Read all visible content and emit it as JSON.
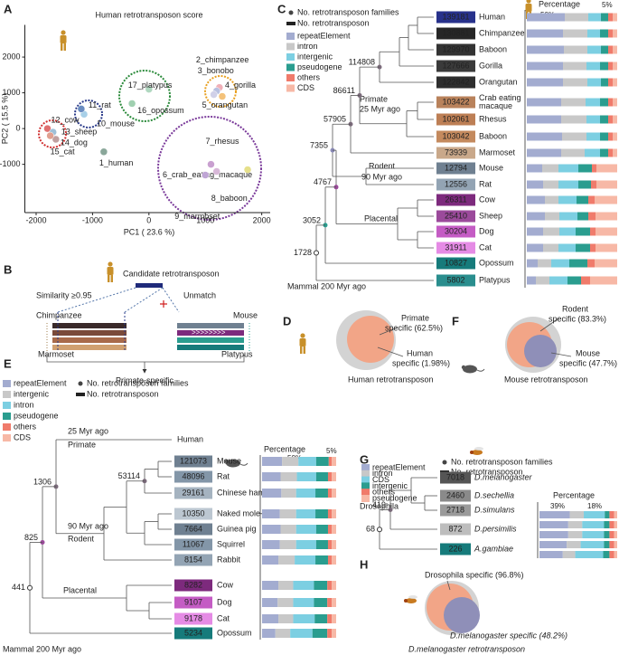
{
  "panel_a": {
    "label": "A",
    "title": "Human retrotransposon score",
    "x_label": "PC1 ( 23.6 %)",
    "y_label": "PC2 ( 15.5 %)",
    "xlim": [
      -2200,
      2150
    ],
    "ylim": [
      -2350,
      2900
    ],
    "xticks": [
      -2000,
      -1000,
      0,
      1000,
      2000
    ],
    "yticks": [
      -1000,
      0,
      1000,
      2000
    ],
    "points": [
      {
        "name": "1_human",
        "x": -800,
        "y": -650,
        "color": "#8aa79a"
      },
      {
        "name": "2_chimpanzee",
        "x": 1250,
        "y": 1150,
        "color": "#f0b0b8"
      },
      {
        "name": "3_bonobo",
        "x": 1200,
        "y": 1050,
        "color": "#b8c0e0"
      },
      {
        "name": "4_gorilla",
        "x": 1300,
        "y": 900,
        "color": "#f4c27a"
      },
      {
        "name": "5_orangutan",
        "x": 1150,
        "y": 950,
        "color": "#d0d0e8"
      },
      {
        "name": "6_crab_eating_macaque",
        "x": 1750,
        "y": -1150,
        "color": "#e6e08a"
      },
      {
        "name": "7_rhesus",
        "x": 1100,
        "y": -1000,
        "color": "#c9a0d0"
      },
      {
        "name": "8_baboon",
        "x": 1200,
        "y": -1200,
        "color": "#d8b8d8"
      },
      {
        "name": "9_marmoset",
        "x": 1000,
        "y": -1300,
        "color": "#bfa5d5"
      },
      {
        "name": "10_mouse",
        "x": -1150,
        "y": 400,
        "color": "#a8d0e8"
      },
      {
        "name": "11_rat",
        "x": -1200,
        "y": 550,
        "color": "#6a8cc0"
      },
      {
        "name": "12_cow",
        "x": -1800,
        "y": 0,
        "color": "#e07070"
      },
      {
        "name": "13_sheep",
        "x": -1700,
        "y": -100,
        "color": "#9fc0d8"
      },
      {
        "name": "14_dog",
        "x": -1650,
        "y": -300,
        "color": "#c0a0a0"
      },
      {
        "name": "15_cat",
        "x": -1750,
        "y": -200,
        "color": "#e0a090"
      },
      {
        "name": "16_opossum",
        "x": -300,
        "y": 700,
        "color": "#a0d0b0"
      },
      {
        "name": "17_platypus",
        "x": 0,
        "y": 1100,
        "color": "#b0d8c0"
      }
    ]
  },
  "panel_b": {
    "label": "B",
    "candidate": "Candidate retrotransposon",
    "similarity": "Similarity ≥0.95",
    "unmatch": "Unmatch",
    "species": [
      "Chimpanzee",
      "Marmoset",
      "Mouse",
      "Platypus"
    ],
    "result": "Primate-specific"
  },
  "panel_c": {
    "label": "C",
    "legend_families": "No. retrotransposon families",
    "legend_count": "No. retrotransposon",
    "percentage_title": "Percentage",
    "scale_labels": [
      "50%",
      "5%"
    ],
    "classes": [
      {
        "name": "repeatElement",
        "color": "#a3acd0"
      },
      {
        "name": "intron",
        "color": "#c8c8c8"
      },
      {
        "name": "intergenic",
        "color": "#7ccfe2"
      },
      {
        "name": "pseudogene",
        "color": "#2a9d8f"
      },
      {
        "name": "others",
        "color": "#f07b6b"
      },
      {
        "name": "CDS",
        "color": "#f7b8a6"
      }
    ],
    "node_counts": [
      114808,
      86611,
      57905,
      7355,
      4767,
      3052,
      1728
    ],
    "clade_labels": [
      "Primate",
      "25 Myr ago",
      "Rodent",
      "90 Myr ago",
      "Placental",
      "Mammal 200 Myr ago"
    ],
    "rows": [
      {
        "name": "Human",
        "count": 139181,
        "color": "#27318b",
        "segments": [
          42,
          26,
          14,
          8,
          5,
          5
        ]
      },
      {
        "name": "Chimpanzee",
        "count": 130881,
        "color": "#262626",
        "segments": [
          40,
          27,
          14,
          9,
          5,
          5
        ]
      },
      {
        "name": "Baboon",
        "count": 129970,
        "color": "#333333",
        "segments": [
          41,
          26,
          15,
          8,
          5,
          5
        ]
      },
      {
        "name": "Gorilla",
        "count": 127666,
        "color": "#3a3a3a",
        "segments": [
          40,
          26,
          15,
          9,
          5,
          5
        ]
      },
      {
        "name": "Orangutan",
        "count": 122842,
        "color": "#2e2e2e",
        "segments": [
          40,
          27,
          15,
          8,
          5,
          5
        ]
      },
      {
        "name": [
          "Crab eating",
          "macaque"
        ],
        "count": 103422,
        "color": "#b9825b",
        "segments": [
          38,
          27,
          16,
          9,
          5,
          5
        ]
      },
      {
        "name": "Rhesus",
        "count": 102061,
        "color": "#bd7f55",
        "segments": [
          38,
          28,
          15,
          9,
          5,
          5
        ]
      },
      {
        "name": "Baboon",
        "count": 103042,
        "color": "#c48a5e",
        "segments": [
          39,
          27,
          15,
          9,
          5,
          5
        ]
      },
      {
        "name": "Marmoset",
        "count": 73939,
        "color": "#c9a88a",
        "segments": [
          38,
          26,
          17,
          9,
          5,
          5
        ]
      },
      {
        "name": "Mouse",
        "count": 12794,
        "color": "#6f8091",
        "segments": [
          17,
          18,
          22,
          15,
          5,
          23
        ]
      },
      {
        "name": "Rat",
        "count": 12556,
        "color": "#93a4b4",
        "segments": [
          18,
          17,
          22,
          14,
          6,
          23
        ]
      },
      {
        "name": "Cow",
        "count": 26311,
        "color": "#7d2a7d",
        "segments": [
          20,
          15,
          20,
          13,
          7,
          25
        ]
      },
      {
        "name": "Sheep",
        "count": 25410,
        "color": "#9b4a9b",
        "segments": [
          20,
          16,
          20,
          12,
          8,
          24
        ]
      },
      {
        "name": "Dog",
        "count": 30204,
        "color": "#c45cc4",
        "segments": [
          18,
          18,
          18,
          16,
          6,
          24
        ]
      },
      {
        "name": "Cat",
        "count": 31911,
        "color": "#e58be5",
        "segments": [
          18,
          17,
          19,
          16,
          6,
          24
        ]
      },
      {
        "name": "Opossum",
        "count": 10827,
        "color": "#167b7b",
        "segments": [
          12,
          15,
          20,
          20,
          8,
          25
        ]
      },
      {
        "name": "Platypus",
        "count": 5802,
        "color": "#2a8e8e",
        "segments": [
          10,
          15,
          20,
          15,
          10,
          30
        ]
      }
    ]
  },
  "panel_d": {
    "label": "D",
    "labels": [
      [
        "Primate",
        "specific (62.5%)"
      ],
      [
        "Human",
        "specific (1.98%)"
      ]
    ],
    "caption": "Human retrotransposon"
  },
  "panel_e": {
    "label": "E",
    "legend_families": "No. retrotransposon families",
    "legend_count": "No. retrotransposon",
    "percentage_title": "Percentage",
    "scale_labels": [
      "50%",
      "5%"
    ],
    "classes": [
      {
        "name": "repeatElement",
        "color": "#a3acd0"
      },
      {
        "name": "intergenic",
        "color": "#c8c8c8"
      },
      {
        "name": "intron",
        "color": "#7ccfe2"
      },
      {
        "name": "pseudogene",
        "color": "#2a9d8f"
      },
      {
        "name": "others",
        "color": "#f07b6b"
      },
      {
        "name": "CDS",
        "color": "#f7b8a6"
      }
    ],
    "node_counts": [
      53114,
      1306,
      825,
      441
    ],
    "clade_labels": [
      "25 Myr ago",
      "Primate",
      "90 Myr ago",
      "Rodent",
      "Placental",
      "Mammal 200 Myr ago"
    ],
    "rows": [
      {
        "name": "Human"
      },
      {
        "name": "Mouse",
        "count": 121073,
        "color": "#6f8091",
        "segments": [
          27,
          22,
          24,
          17,
          4,
          6
        ]
      },
      {
        "name": "Rat",
        "count": 48096,
        "color": "#8396a8",
        "segments": [
          25,
          22,
          26,
          16,
          5,
          6
        ]
      },
      {
        "name": "Chinese hamster",
        "count": 29161,
        "color": "#a5b3c0",
        "segments": [
          26,
          20,
          26,
          17,
          5,
          6
        ]
      },
      {
        "name": "Naked mole-rat",
        "count": 10350,
        "color": "#bcc7d1",
        "segments": [
          24,
          22,
          26,
          17,
          5,
          6
        ]
      },
      {
        "name": "Guinea pig",
        "count": 7664,
        "color": "#6f8091",
        "segments": [
          25,
          21,
          27,
          16,
          5,
          6
        ]
      },
      {
        "name": "Squirrel",
        "count": 11067,
        "color": "#8396a8",
        "segments": [
          24,
          22,
          27,
          16,
          5,
          6
        ]
      },
      {
        "name": "Rabbit",
        "count": 8154,
        "color": "#93a4b4",
        "segments": [
          22,
          22,
          28,
          17,
          5,
          6
        ]
      },
      {
        "name": "Cow",
        "count": 8282,
        "color": "#7d2a7d",
        "segments": [
          22,
          20,
          28,
          18,
          6,
          6
        ]
      },
      {
        "name": "Dog",
        "count": 9107,
        "color": "#c45cc4",
        "segments": [
          21,
          21,
          28,
          18,
          6,
          6
        ]
      },
      {
        "name": "Cat",
        "count": 9178,
        "color": "#e58be5",
        "segments": [
          22,
          20,
          29,
          17,
          6,
          6
        ]
      },
      {
        "name": "Opossum",
        "count": 5234,
        "color": "#167b7b",
        "segments": [
          18,
          20,
          30,
          20,
          6,
          6
        ]
      }
    ]
  },
  "panel_f": {
    "label": "F",
    "labels": [
      [
        "Rodent",
        "specific (83.3%)"
      ],
      [
        "Mouse",
        "specific (47.7%)"
      ]
    ],
    "caption": "Mouse retrotransposon"
  },
  "panel_g": {
    "label": "G",
    "legend_families": "No. retrotransposon families",
    "legend_count": "No. retrotransposon",
    "percentage_title": "Percentage",
    "scale_labels": [
      "39%",
      "18%"
    ],
    "classes": [
      {
        "name": "repeatElement",
        "color": "#a3acd0"
      },
      {
        "name": "intron",
        "color": "#c8c8c8"
      },
      {
        "name": "CDS",
        "color": "#7ccfe2"
      },
      {
        "name": "intergenic",
        "color": "#2a9d8f"
      },
      {
        "name": "others",
        "color": "#f07b6b"
      },
      {
        "name": "pseudogene",
        "color": "#f7b8a6"
      }
    ],
    "node_counts": [
      419,
      68
    ],
    "clade_labels": [
      "Drosophila"
    ],
    "rows": [
      {
        "name": "D.melanogaster",
        "count": 7018,
        "color": "#555555",
        "segments": [
          39,
          18,
          27,
          6,
          6,
          4
        ]
      },
      {
        "name": "D.sechellia",
        "count": 2460,
        "color": "#8a8a8a",
        "segments": [
          37,
          18,
          28,
          7,
          6,
          4
        ]
      },
      {
        "name": "D.simulans",
        "count": 2718,
        "color": "#9a9a9a",
        "segments": [
          37,
          18,
          28,
          7,
          6,
          4
        ]
      },
      {
        "name": "D.persimilis",
        "count": 872,
        "color": "#bdbdbd",
        "segments": [
          35,
          18,
          30,
          7,
          6,
          4
        ]
      },
      {
        "name": "A.gambiae",
        "count": 226,
        "color": "#167b7b",
        "segments": [
          30,
          16,
          36,
          8,
          6,
          4
        ]
      }
    ]
  },
  "panel_h": {
    "label": "H",
    "labels": [
      "Drosophila specific (96.8%)",
      "D.melanogaster specific (48.2%)"
    ],
    "caption": "D.melanogaster retrotransposon"
  }
}
